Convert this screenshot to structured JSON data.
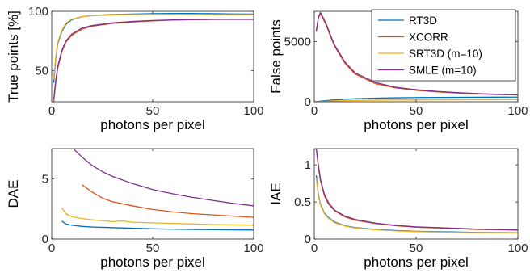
{
  "chart_data": [
    {
      "type": "line",
      "panel": "top-left",
      "xlabel": "photons per pixel",
      "ylabel": "True points [%]",
      "xlim": [
        0,
        100
      ],
      "ylim": [
        24,
        100
      ],
      "xticks": [
        0,
        50,
        100
      ],
      "yticks": [
        50,
        100
      ],
      "xtick_labels": [
        "0",
        "50",
        "100"
      ],
      "ytick_labels": [
        "50",
        "100"
      ],
      "grid": false,
      "series": [
        {
          "name": "RT3D",
          "color": "#0072BD",
          "x": [
            1,
            2,
            3,
            5,
            7,
            10,
            15,
            20,
            30,
            40,
            50,
            60,
            70,
            80,
            90,
            100
          ],
          "y": [
            40,
            60,
            73,
            83,
            89,
            93,
            95.5,
            96.5,
            97.3,
            97.7,
            98,
            98.2,
            98.2,
            98,
            97.8,
            97.7
          ]
        },
        {
          "name": "XCORR",
          "color": "#D95319",
          "x": [
            1,
            2,
            3,
            5,
            7,
            10,
            15,
            20,
            30,
            40,
            50,
            60,
            70,
            80,
            90,
            100
          ],
          "y": [
            24,
            40,
            52,
            66,
            74,
            80,
            85,
            87.5,
            89.8,
            91,
            92,
            92.6,
            93,
            93.2,
            93.3,
            93.4
          ]
        },
        {
          "name": "SRT3D (m=10)",
          "color": "#EDB120",
          "x": [
            1,
            2,
            3,
            5,
            7,
            10,
            15,
            20,
            30,
            40,
            50,
            60,
            70,
            80,
            90,
            100
          ],
          "y": [
            43,
            62,
            74,
            84,
            90,
            93.5,
            95.5,
            96.3,
            97,
            97.3,
            97.5,
            97.5,
            97.4,
            97.3,
            97.3,
            97.3
          ]
        },
        {
          "name": "SMLE (m=10)",
          "color": "#7E2F8E",
          "x": [
            1,
            2,
            3,
            5,
            7,
            10,
            15,
            20,
            30,
            40,
            50,
            60,
            70,
            80,
            90,
            100
          ],
          "y": [
            26,
            42,
            54,
            67,
            75,
            81,
            86,
            88,
            90.3,
            91.5,
            92.3,
            92.8,
            93.1,
            93.2,
            93.2,
            93.2
          ]
        }
      ]
    },
    {
      "type": "line",
      "panel": "top-right",
      "xlabel": "photons per pixel",
      "ylabel": "False points",
      "xlim": [
        0,
        100
      ],
      "ylim": [
        0,
        7500
      ],
      "xticks": [
        0,
        50,
        100
      ],
      "yticks": [
        0,
        5000
      ],
      "xtick_labels": [
        "0",
        "50",
        "100"
      ],
      "ytick_labels": [
        "0",
        "5000"
      ],
      "grid": false,
      "legend": {
        "placement": "top-right",
        "entries": [
          "RT3D",
          "XCORR",
          "SRT3D (m=10)",
          "SMLE (m=10)"
        ]
      },
      "series": [
        {
          "name": "RT3D",
          "color": "#0072BD",
          "x": [
            1,
            3,
            5,
            10,
            15,
            20,
            30,
            40,
            50,
            60,
            70,
            80,
            90,
            100
          ],
          "y": [
            0,
            50,
            90,
            160,
            210,
            250,
            300,
            330,
            350,
            360,
            370,
            375,
            380,
            385
          ]
        },
        {
          "name": "XCORR",
          "color": "#D95319",
          "x": [
            1,
            2,
            3,
            4,
            6,
            8,
            10,
            15,
            20,
            30,
            40,
            50,
            60,
            70,
            80,
            90,
            100
          ],
          "y": [
            5800,
            6900,
            7300,
            7000,
            6300,
            5400,
            4600,
            3200,
            2300,
            1500,
            1150,
            950,
            820,
            720,
            650,
            600,
            560
          ]
        },
        {
          "name": "SRT3D (m=10)",
          "color": "#EDB120",
          "x": [
            1,
            3,
            5,
            10,
            15,
            20,
            30,
            40,
            50,
            60,
            70,
            80,
            90,
            100
          ],
          "y": [
            0,
            25,
            40,
            70,
            90,
            110,
            130,
            140,
            150,
            160,
            165,
            170,
            170,
            175
          ]
        },
        {
          "name": "SMLE (m=10)",
          "color": "#7E2F8E",
          "x": [
            1,
            2,
            3,
            4,
            6,
            8,
            10,
            15,
            20,
            30,
            40,
            50,
            60,
            70,
            80,
            90,
            100
          ],
          "y": [
            5900,
            7000,
            7400,
            7100,
            6400,
            5500,
            4700,
            3300,
            2400,
            1600,
            1200,
            1000,
            860,
            760,
            680,
            620,
            580
          ]
        }
      ]
    },
    {
      "type": "line",
      "panel": "bottom-left",
      "xlabel": "photons per pixel",
      "ylabel": "DAE",
      "xlim": [
        0,
        100
      ],
      "ylim": [
        0,
        7.5
      ],
      "xticks": [
        0,
        50,
        100
      ],
      "yticks": [
        0,
        5
      ],
      "xtick_labels": [
        "0",
        "50",
        "100"
      ],
      "ytick_labels": [
        "0",
        "5"
      ],
      "grid": false,
      "series": [
        {
          "name": "RT3D",
          "color": "#0072BD",
          "x": [
            5,
            7,
            10,
            15,
            20,
            30,
            40,
            50,
            60,
            70,
            80,
            90,
            100
          ],
          "y": [
            1.5,
            1.25,
            1.15,
            1.05,
            1.0,
            0.95,
            0.9,
            0.85,
            0.82,
            0.8,
            0.78,
            0.76,
            0.75
          ]
        },
        {
          "name": "XCORR",
          "color": "#D95319",
          "x": [
            15,
            20,
            25,
            30,
            40,
            50,
            60,
            70,
            80,
            90,
            100
          ],
          "y": [
            4.5,
            3.9,
            3.4,
            3.1,
            2.75,
            2.45,
            2.25,
            2.1,
            2.0,
            1.9,
            1.8
          ]
        },
        {
          "name": "SRT3D (m=10)",
          "color": "#EDB120",
          "x": [
            5,
            7,
            10,
            15,
            20,
            30,
            35,
            40,
            50,
            60,
            70,
            80,
            90,
            100
          ],
          "y": [
            2.6,
            2.1,
            1.85,
            1.7,
            1.6,
            1.45,
            1.5,
            1.4,
            1.35,
            1.3,
            1.25,
            1.2,
            1.18,
            1.15
          ]
        },
        {
          "name": "SMLE (m=10)",
          "color": "#7E2F8E",
          "x": [
            10,
            15,
            20,
            25,
            30,
            40,
            50,
            60,
            70,
            80,
            90,
            100
          ],
          "y": [
            7.6,
            6.8,
            6.1,
            5.6,
            5.2,
            4.6,
            4.1,
            3.75,
            3.45,
            3.2,
            2.95,
            2.75
          ]
        }
      ]
    },
    {
      "type": "line",
      "panel": "bottom-right",
      "xlabel": "photons per pixel",
      "ylabel": "IAE",
      "xlim": [
        0,
        100
      ],
      "ylim": [
        0,
        1.22
      ],
      "xticks": [
        0,
        50,
        100
      ],
      "yticks": [
        0,
        0.5,
        1
      ],
      "xtick_labels": [
        "0",
        "50",
        "100"
      ],
      "ytick_labels": [
        "0",
        "0.5",
        "1"
      ],
      "grid": false,
      "series": [
        {
          "name": "RT3D",
          "color": "#0072BD",
          "x": [
            1,
            2,
            3,
            5,
            7,
            10,
            15,
            20,
            30,
            40,
            50,
            60,
            70,
            80,
            90,
            100
          ],
          "y": [
            0.86,
            0.6,
            0.47,
            0.35,
            0.29,
            0.23,
            0.18,
            0.155,
            0.13,
            0.115,
            0.105,
            0.1,
            0.095,
            0.09,
            0.088,
            0.085
          ]
        },
        {
          "name": "XCORR",
          "color": "#D95319",
          "x": [
            1,
            2,
            3,
            5,
            7,
            10,
            15,
            20,
            30,
            40,
            50,
            60,
            70,
            80,
            90,
            100
          ],
          "y": [
            1.22,
            0.97,
            0.79,
            0.58,
            0.47,
            0.38,
            0.3,
            0.255,
            0.21,
            0.18,
            0.16,
            0.15,
            0.14,
            0.13,
            0.125,
            0.12
          ]
        },
        {
          "name": "SRT3D (m=10)",
          "color": "#EDB120",
          "x": [
            1,
            2,
            3,
            5,
            7,
            10,
            15,
            20,
            30,
            40,
            50,
            60,
            70,
            80,
            90,
            100
          ],
          "y": [
            0.82,
            0.58,
            0.46,
            0.34,
            0.28,
            0.22,
            0.175,
            0.15,
            0.125,
            0.11,
            0.1,
            0.095,
            0.09,
            0.087,
            0.085,
            0.083
          ]
        },
        {
          "name": "SMLE (m=10)",
          "color": "#7E2F8E",
          "x": [
            1,
            2,
            3,
            5,
            7,
            10,
            15,
            20,
            30,
            40,
            50,
            60,
            70,
            80,
            90,
            100
          ],
          "y": [
            1.22,
            1.0,
            0.81,
            0.6,
            0.49,
            0.39,
            0.31,
            0.265,
            0.215,
            0.185,
            0.165,
            0.155,
            0.145,
            0.135,
            0.13,
            0.125
          ]
        }
      ]
    }
  ]
}
